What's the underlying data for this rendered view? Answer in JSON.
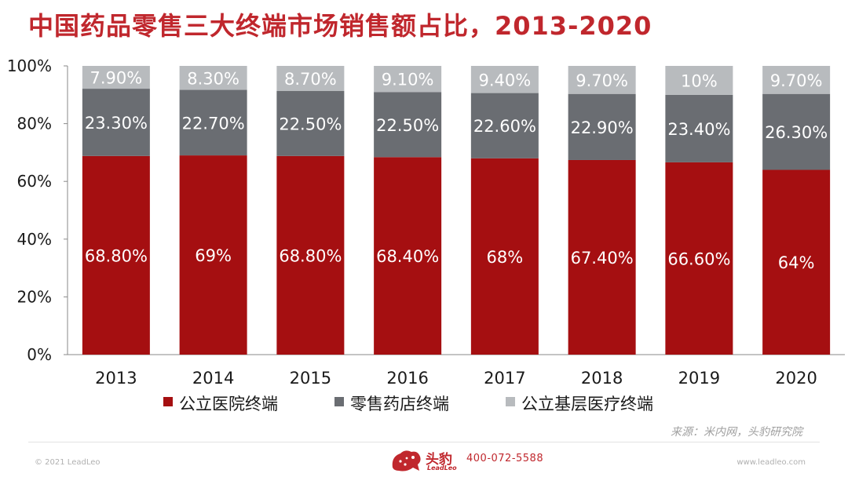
{
  "page": {
    "title": "中国药品零售三大终端市场销售额占比，2013-2020",
    "source": "来源：米内网，头豹研究院",
    "copyright": "© 2021 LeadLeo",
    "website": "www.leadleo.com",
    "brand_name": "头豹",
    "brand_sub": "LeadLeo",
    "phone": "400-072-5588"
  },
  "chart_data": {
    "type": "bar",
    "stacked": true,
    "categories": [
      "2013",
      "2014",
      "2015",
      "2016",
      "2017",
      "2018",
      "2019",
      "2020"
    ],
    "series": [
      {
        "name": "公立医院终端",
        "color": "#a50f11",
        "values": [
          68.8,
          69,
          68.8,
          68.4,
          68,
          67.4,
          66.6,
          64
        ],
        "labels": [
          "68.80%",
          "69%",
          "68.80%",
          "68.40%",
          "68%",
          "67.40%",
          "66.60%",
          "64%"
        ]
      },
      {
        "name": "零售药店终端",
        "color": "#6a6d72",
        "values": [
          23.3,
          22.7,
          22.5,
          22.5,
          22.6,
          22.9,
          23.4,
          26.3
        ],
        "labels": [
          "23.30%",
          "22.70%",
          "22.50%",
          "22.50%",
          "22.60%",
          "22.90%",
          "23.40%",
          "26.30%"
        ]
      },
      {
        "name": "公立基层医疗终端",
        "color": "#b8bbbe",
        "values": [
          7.9,
          8.3,
          8.7,
          9.1,
          9.4,
          9.7,
          10,
          9.7
        ],
        "labels": [
          "7.90%",
          "8.30%",
          "8.70%",
          "9.10%",
          "9.40%",
          "9.70%",
          "10%",
          "9.70%"
        ]
      }
    ],
    "y_ticks": [
      "0%",
      "20%",
      "40%",
      "60%",
      "80%",
      "100%"
    ],
    "ylim": [
      0,
      100
    ],
    "legend": "bottom",
    "title": "中国药品零售三大终端市场销售额占比，2013-2020",
    "xlabel": "",
    "ylabel": ""
  }
}
